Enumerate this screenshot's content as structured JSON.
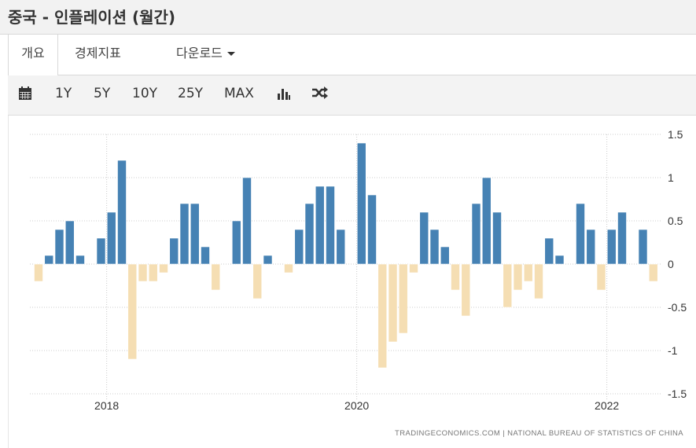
{
  "header": {
    "title": "중국 - 인플레이션 (월간)"
  },
  "tabs": [
    {
      "label": "개요",
      "active": true
    },
    {
      "label": "경제지표",
      "active": false
    },
    {
      "label": "다운로드",
      "active": false,
      "dropdown": true
    }
  ],
  "toolbar": {
    "calendar_icon": "calendar-icon",
    "ranges": [
      "1Y",
      "5Y",
      "10Y",
      "25Y",
      "MAX"
    ],
    "chart_type_icon": "bar-chart-icon",
    "compare_icon": "shuffle-icon"
  },
  "colors": {
    "positive": "#4682b4",
    "negative": "#f5deb3",
    "grid": "#cccccc",
    "toolbar_bg": "#f3f3f3"
  },
  "footer": {
    "source": "TRADINGECONOMICS.COM  |  NATIONAL BUREAU OF STATISTICS OF CHINA"
  },
  "chart_data": {
    "type": "bar",
    "title": "중국 - 인플레이션 (월간)",
    "xlabel": "",
    "ylabel": "",
    "ylim": [
      -1.5,
      1.5
    ],
    "yticks": [
      1.5,
      1,
      0.5,
      0,
      -0.5,
      -1,
      -1.5
    ],
    "ytick_labels": [
      "1.5",
      "1",
      "0.5",
      "0",
      "-0.5",
      "-1",
      "-1.5"
    ],
    "xtick_labels": [
      "2018",
      "2020",
      "2022"
    ],
    "grid": true,
    "y_axis_position": "right",
    "categories": [
      "2017-06",
      "2017-07",
      "2017-08",
      "2017-09",
      "2017-10",
      "2017-11",
      "2017-12",
      "2018-01",
      "2018-02",
      "2018-03",
      "2018-04",
      "2018-05",
      "2018-06",
      "2018-07",
      "2018-08",
      "2018-09",
      "2018-10",
      "2018-11",
      "2018-12",
      "2019-01",
      "2019-02",
      "2019-03",
      "2019-04",
      "2019-05",
      "2019-06",
      "2019-07",
      "2019-08",
      "2019-09",
      "2019-10",
      "2019-11",
      "2019-12",
      "2020-01",
      "2020-02",
      "2020-03",
      "2020-04",
      "2020-05",
      "2020-06",
      "2020-07",
      "2020-08",
      "2020-09",
      "2020-10",
      "2020-11",
      "2020-12",
      "2021-01",
      "2021-02",
      "2021-03",
      "2021-04",
      "2021-05",
      "2021-06",
      "2021-07",
      "2021-08",
      "2021-09",
      "2021-10",
      "2021-11",
      "2021-12",
      "2022-01",
      "2022-02",
      "2022-03",
      "2022-04",
      "2022-05"
    ],
    "values": [
      -0.2,
      0.1,
      0.4,
      0.5,
      0.1,
      0.0,
      0.3,
      0.6,
      1.2,
      -1.1,
      -0.2,
      -0.2,
      -0.1,
      0.3,
      0.7,
      0.7,
      0.2,
      -0.3,
      0.0,
      0.5,
      1.0,
      -0.4,
      0.1,
      0.0,
      -0.1,
      0.4,
      0.7,
      0.9,
      0.9,
      0.4,
      0.0,
      1.4,
      0.8,
      -1.2,
      -0.9,
      -0.8,
      -0.1,
      0.6,
      0.4,
      0.2,
      -0.3,
      -0.6,
      0.7,
      1.0,
      0.6,
      -0.5,
      -0.3,
      -0.2,
      -0.4,
      0.3,
      0.1,
      0.0,
      0.7,
      0.4,
      -0.3,
      0.4,
      0.6,
      0.0,
      0.4,
      -0.2
    ]
  }
}
